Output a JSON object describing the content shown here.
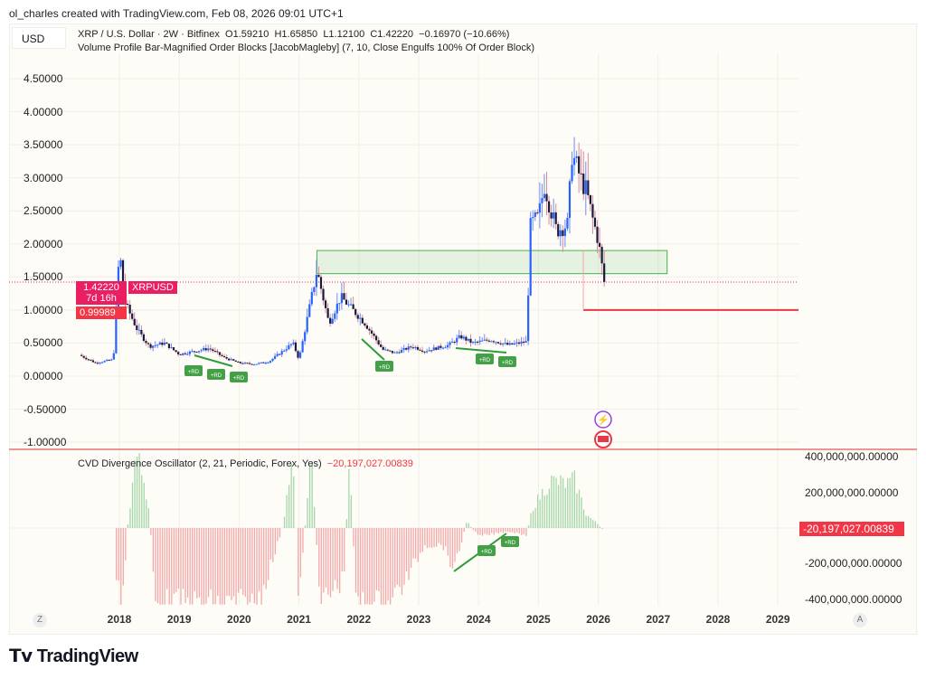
{
  "credit": "ol_charles created with TradingView.com, Feb 08, 2026 09:01 UTC+1",
  "currency": "USD",
  "legend": {
    "symbol": "XRP / U.S. Dollar · 2W · Bitfinex",
    "open": "O1.59210",
    "high": "H1.65850",
    "low": "L1.12100",
    "close": "C1.42220",
    "change": "−0.16970 (−10.66%)",
    "indicator": "Volume Profile Bar-Magnified Order Blocks [JacobMagleby] (7, 10, Close Engulfs 100% Of Order Block)"
  },
  "price_axis": [
    "4.50000",
    "4.00000",
    "3.50000",
    "3.00000",
    "2.50000",
    "2.00000",
    "1.50000",
    "1.00000",
    "0.50000",
    "0.00000",
    "-0.50000",
    "-1.00000"
  ],
  "last_price": {
    "value": "1.42220",
    "countdown": "7d 16h",
    "symbol": "XRPUSD"
  },
  "level_tag": "0.99989",
  "oscillator": {
    "title": "CVD Divergence Oscillator (2, 21, Periodic, Forex, Yes)",
    "value": "−20,197,027.00839",
    "axis": [
      "400,000,000.00000",
      "200,000,000.00000",
      "-200,000,000.00000",
      "-400,000,000.00000"
    ],
    "tag": "-20,197,027.00839"
  },
  "time_axis": [
    "2018",
    "2019",
    "2020",
    "2021",
    "2022",
    "2023",
    "2024",
    "2025",
    "2026",
    "2027",
    "2028",
    "2029"
  ],
  "signal_label": "+RD",
  "scale_buttons": {
    "left": "Z",
    "right": "A"
  },
  "logo": "TradingView",
  "colors": {
    "up": "#2962ff",
    "down": "#1a1a3a",
    "box": "#4caf50",
    "level": "#e53946",
    "osc_pos": "#a5d6a7",
    "osc_neg": "#f4a7a7",
    "tag": "#e91e63"
  },
  "chart_data": [
    {
      "type": "candlestick",
      "title": "XRP / U.S. Dollar · 2W · Bitfinex",
      "ylim": [
        -1.1,
        4.8
      ],
      "xlim": [
        2017.0,
        2029.4
      ],
      "close_path": [
        [
          2017.33,
          0.32
        ],
        [
          2017.6,
          0.2
        ],
        [
          2017.9,
          0.25
        ],
        [
          2018.0,
          1.9
        ],
        [
          2018.1,
          1.1
        ],
        [
          2018.3,
          0.7
        ],
        [
          2018.5,
          0.45
        ],
        [
          2018.75,
          0.5
        ],
        [
          2019.0,
          0.33
        ],
        [
          2019.5,
          0.42
        ],
        [
          2019.75,
          0.28
        ],
        [
          2020.0,
          0.2
        ],
        [
          2020.25,
          0.18
        ],
        [
          2020.5,
          0.22
        ],
        [
          2020.9,
          0.5
        ],
        [
          2021.0,
          0.25
        ],
        [
          2021.3,
          1.6
        ],
        [
          2021.5,
          0.8
        ],
        [
          2021.7,
          1.2
        ],
        [
          2021.9,
          1.0
        ],
        [
          2022.1,
          0.8
        ],
        [
          2022.4,
          0.4
        ],
        [
          2022.6,
          0.35
        ],
        [
          2022.9,
          0.45
        ],
        [
          2023.1,
          0.38
        ],
        [
          2023.5,
          0.47
        ],
        [
          2023.7,
          0.6
        ],
        [
          2023.9,
          0.5
        ],
        [
          2024.2,
          0.55
        ],
        [
          2024.5,
          0.47
        ],
        [
          2024.8,
          0.52
        ],
        [
          2024.87,
          2.3
        ],
        [
          2025.0,
          2.4
        ],
        [
          2025.1,
          2.9
        ],
        [
          2025.3,
          2.2
        ],
        [
          2025.5,
          2.3
        ],
        [
          2025.55,
          3.4
        ],
        [
          2025.7,
          3.0
        ],
        [
          2025.8,
          2.8
        ],
        [
          2025.9,
          2.4
        ],
        [
          2026.0,
          2.05
        ],
        [
          2026.1,
          1.42
        ]
      ],
      "order_block": {
        "from": 2021.3,
        "to": 2027.15,
        "top": 1.9,
        "bottom": 1.55
      },
      "level": {
        "from": 2025.75,
        "value": 0.99989
      },
      "last": 1.4222
    },
    {
      "type": "bar",
      "title": "CVD Divergence Oscillator (2, 21, Periodic, Forex, Yes)",
      "ylim": [
        -430000000,
        420000000
      ],
      "value_path_millions": [
        [
          2017.95,
          -300
        ],
        [
          2018.05,
          -450
        ],
        [
          2018.15,
          60
        ],
        [
          2018.3,
          450
        ],
        [
          2018.5,
          100
        ],
        [
          2018.6,
          -450
        ],
        [
          2019.5,
          -450
        ],
        [
          2020.3,
          -450
        ],
        [
          2020.6,
          -150
        ],
        [
          2020.75,
          40
        ],
        [
          2020.9,
          450
        ],
        [
          2021.0,
          -450
        ],
        [
          2021.2,
          450
        ],
        [
          2021.35,
          -450
        ],
        [
          2021.75,
          -300
        ],
        [
          2021.85,
          450
        ],
        [
          2021.95,
          -450
        ],
        [
          2022.5,
          -450
        ],
        [
          2022.8,
          -300
        ],
        [
          2023.1,
          -100
        ],
        [
          2023.4,
          -100
        ],
        [
          2023.6,
          -250
        ],
        [
          2023.8,
          40
        ],
        [
          2024.0,
          -50
        ],
        [
          2024.5,
          -20
        ],
        [
          2024.8,
          -40
        ],
        [
          2024.9,
          120
        ],
        [
          2025.2,
          280
        ],
        [
          2025.5,
          260
        ],
        [
          2025.6,
          290
        ],
        [
          2025.8,
          80
        ],
        [
          2026.0,
          20
        ],
        [
          2026.1,
          -20
        ]
      ]
    }
  ]
}
